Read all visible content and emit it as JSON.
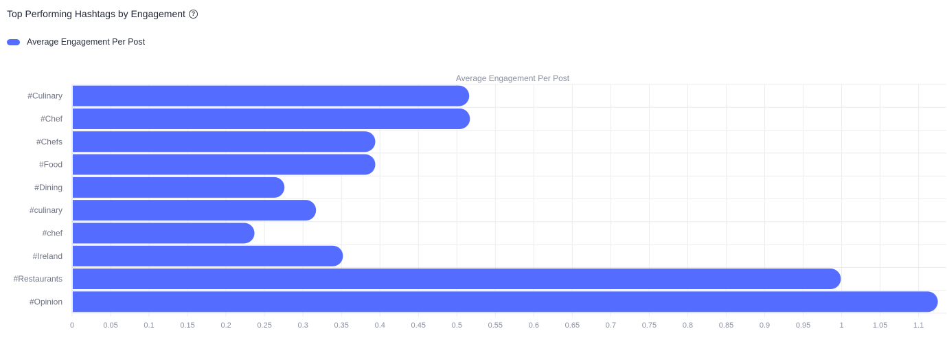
{
  "header": {
    "title": "Top Performing Hashtags by Engagement",
    "help_icon": "question-circle-icon"
  },
  "legend": [
    {
      "label": "Average Engagement Per Post",
      "color": "#546cff"
    }
  ],
  "chart_data": {
    "type": "bar",
    "orientation": "horizontal",
    "title": "Average Engagement Per Post",
    "categories": [
      "#Culinary",
      "#Chef",
      "#Chefs",
      "#Food",
      "#Dining",
      "#culinary",
      "#chef",
      "#Ireland",
      "#Restaurants",
      "#Opinion"
    ],
    "series": [
      {
        "name": "Average Engagement Per Post",
        "values": [
          0.516,
          0.517,
          0.394,
          0.394,
          0.276,
          0.317,
          0.237,
          0.352,
          0.999,
          1.125
        ]
      }
    ],
    "xlim": [
      0,
      1.136
    ],
    "xticks": [
      "0",
      "0.05",
      "0.1",
      "0.15",
      "0.2",
      "0.25",
      "0.3",
      "0.35",
      "0.4",
      "0.45",
      "0.5",
      "0.55",
      "0.6",
      "0.65",
      "0.7",
      "0.75",
      "0.8",
      "0.85",
      "0.9",
      "0.95",
      "1",
      "1.05",
      "1.1"
    ],
    "grid": true,
    "legend_position": "top-left",
    "colors": {
      "bar": "#546cff",
      "grid": "#ececf1",
      "axis_text": "#8a8fa0",
      "category_text": "#6f7485"
    }
  }
}
